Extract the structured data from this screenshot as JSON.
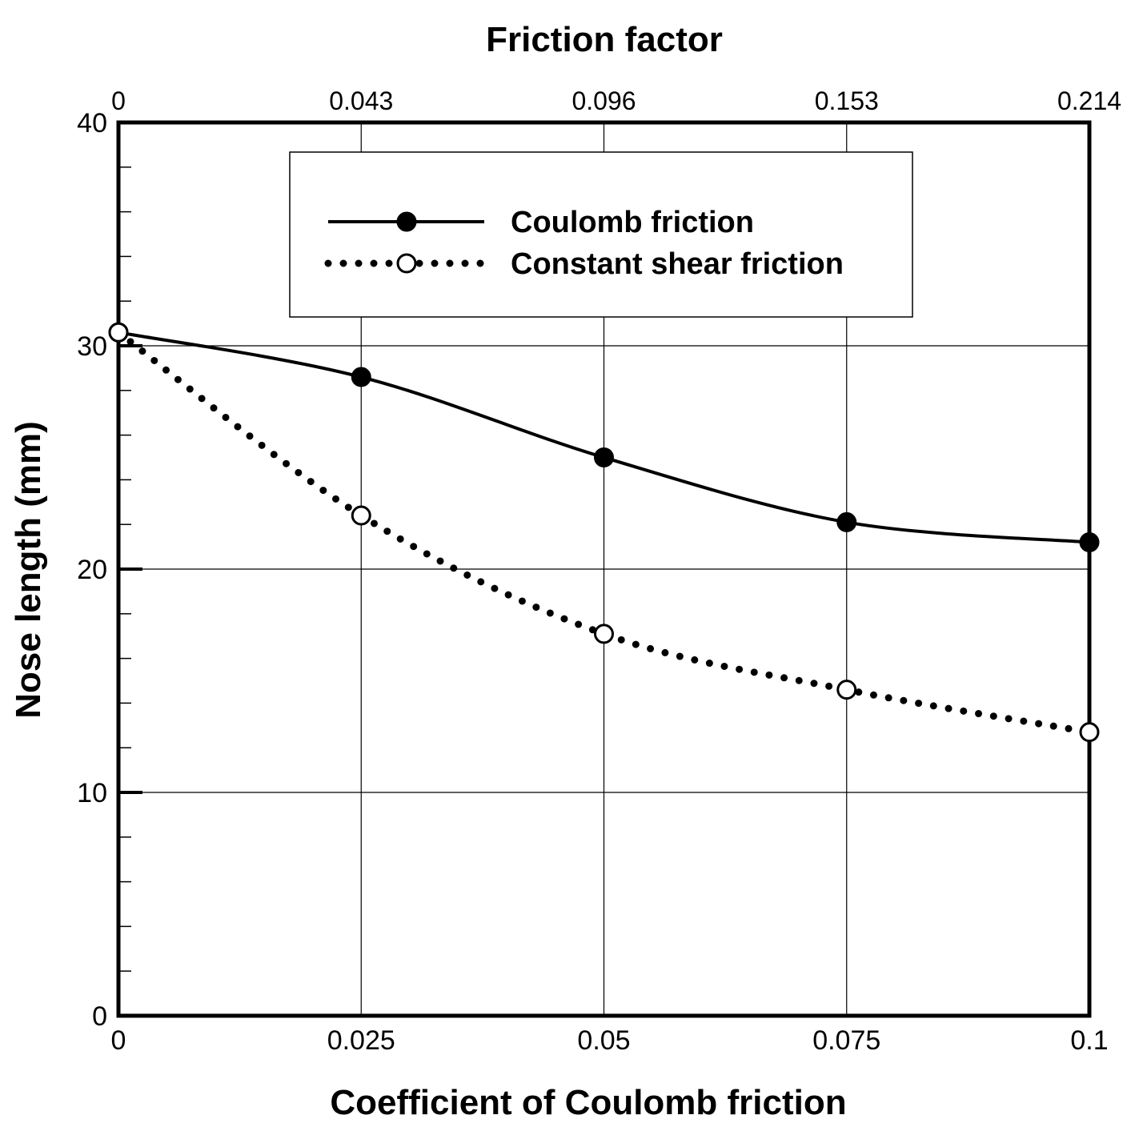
{
  "chart_data": {
    "type": "line",
    "xlabel": "Coefficient of Coulomb friction",
    "x2label": "Friction factor",
    "ylabel": "Nose length (mm)",
    "xlim": [
      0,
      0.1
    ],
    "ylim": [
      0,
      40
    ],
    "x_ticks": [
      0,
      0.025,
      0.05,
      0.075,
      0.1
    ],
    "x_tick_labels": [
      "0",
      "0.025",
      "0.05",
      "0.075",
      "0.1"
    ],
    "x2_tick_labels": [
      "0",
      "0.043",
      "0.096",
      "0.153",
      "0.214"
    ],
    "y_ticks": [
      0,
      10,
      20,
      30,
      40
    ],
    "y_tick_labels": [
      "0",
      "10",
      "20",
      "30",
      "40"
    ],
    "grid": true,
    "legend_position": "top-center",
    "series": [
      {
        "name": "Coulomb friction",
        "style": "solid",
        "marker": "filled-circle",
        "color": "#000000",
        "x": [
          0,
          0.025,
          0.05,
          0.075,
          0.1
        ],
        "values": [
          30.6,
          28.6,
          25.0,
          22.1,
          21.2
        ]
      },
      {
        "name": "Constant shear friction",
        "style": "dotted",
        "marker": "open-circle",
        "color": "#000000",
        "x": [
          0,
          0.025,
          0.05,
          0.075,
          0.1
        ],
        "values": [
          30.6,
          22.4,
          17.1,
          14.6,
          12.7
        ]
      }
    ]
  }
}
